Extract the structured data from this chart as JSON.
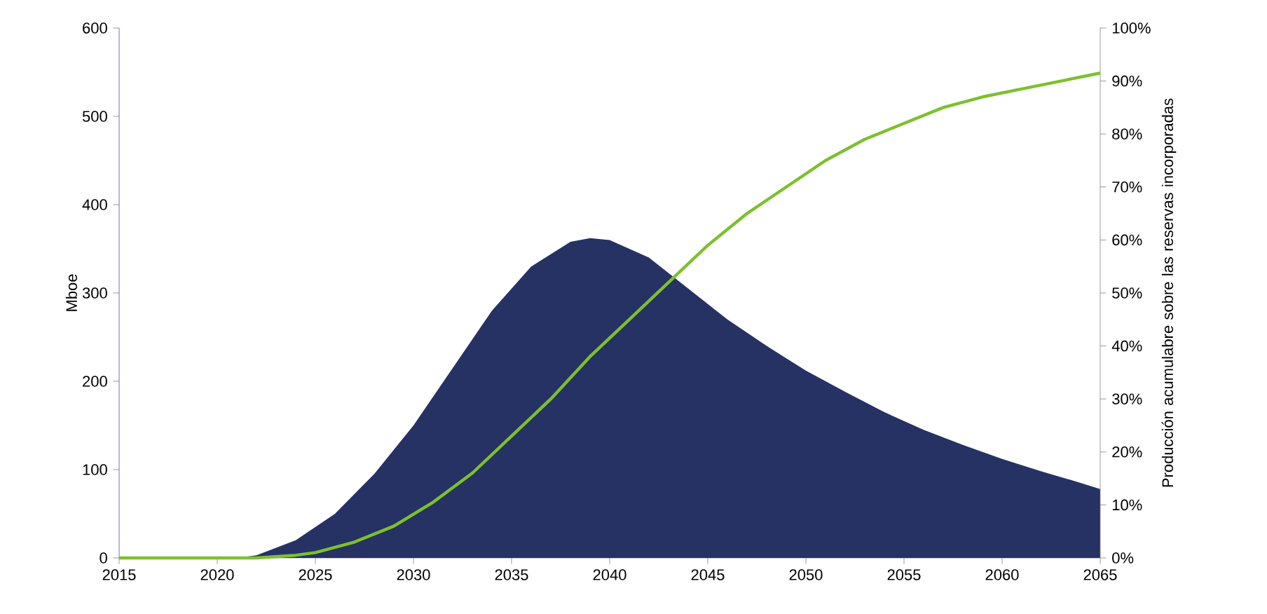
{
  "chart_data": {
    "type": "area",
    "ylabel": "Mboe",
    "y2label": "Producción acumulabre sobre las reservas incorporadas",
    "xlim": [
      2015,
      2065
    ],
    "xticks": [
      2015,
      2020,
      2025,
      2030,
      2035,
      2040,
      2045,
      2050,
      2055,
      2060,
      2065
    ],
    "ylim": [
      0,
      600
    ],
    "yticks": [
      0,
      100,
      200,
      300,
      400,
      500,
      600
    ],
    "y2lim": [
      0,
      100
    ],
    "y2ticks": [
      {
        "value": 0,
        "label": "0%"
      },
      {
        "value": 10,
        "label": "10%"
      },
      {
        "value": 20,
        "label": "20%"
      },
      {
        "value": 30,
        "label": "30%"
      },
      {
        "value": 40,
        "label": "40%"
      },
      {
        "value": 50,
        "label": "50%"
      },
      {
        "value": 60,
        "label": "60%"
      },
      {
        "value": 70,
        "label": "70%"
      },
      {
        "value": 80,
        "label": "80%"
      },
      {
        "value": 90,
        "label": "90%"
      },
      {
        "value": 100,
        "label": "100%"
      }
    ],
    "series": [
      {
        "color": "#253263",
        "x": [
          2015,
          2021,
          2022,
          2024,
          2026,
          2028,
          2030,
          2032,
          2034,
          2036,
          2038,
          2039,
          2040,
          2042,
          2044,
          2046,
          2048,
          2050,
          2052,
          2054,
          2056,
          2058,
          2060,
          2062,
          2064,
          2065
        ],
        "values": [
          0,
          0,
          3,
          20,
          50,
          95,
          150,
          215,
          280,
          330,
          358,
          362,
          360,
          340,
          305,
          270,
          240,
          212,
          188,
          165,
          145,
          128,
          112,
          98,
          85,
          78
        ]
      },
      {
        "type": "line",
        "axis": "y2",
        "color": "#7dc02e",
        "x": [
          2015,
          2022,
          2024,
          2025,
          2027,
          2029,
          2031,
          2033,
          2035,
          2037,
          2039,
          2041,
          2043,
          2045,
          2047,
          2049,
          2051,
          2053,
          2055,
          2057,
          2059,
          2061,
          2063,
          2065
        ],
        "values": [
          0,
          0,
          0.5,
          1,
          3,
          6,
          10.5,
          16,
          23,
          30,
          38,
          45,
          52,
          59,
          65,
          70,
          75,
          79,
          82,
          85,
          87,
          88.5,
          90,
          91.5
        ]
      }
    ]
  }
}
